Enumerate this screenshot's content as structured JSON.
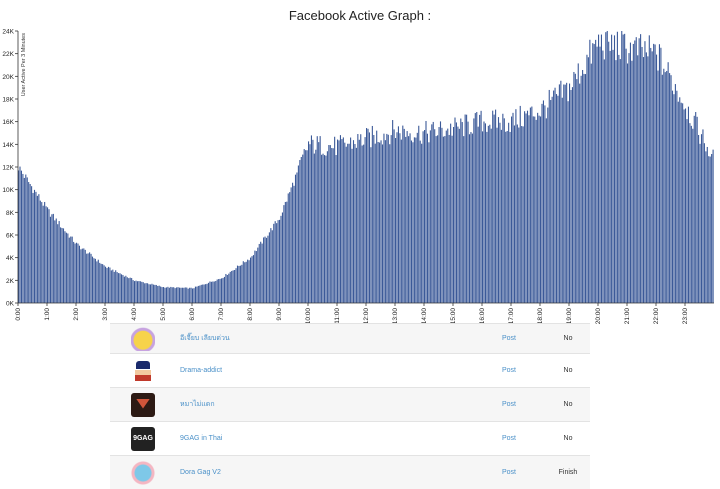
{
  "chart_data": {
    "type": "bar",
    "title": "Facebook Active Graph :",
    "ylabel": "User Active Per 3 Minutes",
    "xlabel": "",
    "ylim": [
      0,
      24000
    ],
    "yticks": [
      "0K",
      "2K",
      "4K",
      "6K",
      "8K",
      "10K",
      "12K",
      "14K",
      "16K",
      "18K",
      "20K",
      "22K",
      "24K"
    ],
    "xticks": [
      "0:00",
      "1:00",
      "2:00",
      "3:00",
      "4:00",
      "5:00",
      "6:00",
      "7:00",
      "8:00",
      "9:00",
      "10:00",
      "11:00",
      "12:00",
      "13:00",
      "14:00",
      "15:00",
      "16:00",
      "17:00",
      "18:00",
      "19:00",
      "20:00",
      "21:00",
      "22:00",
      "23:00"
    ],
    "bar_color": "#3b5998",
    "interval_minutes": 3,
    "hourly_profile": [
      12000,
      8200,
      5200,
      3200,
      2000,
      1400,
      1300,
      2200,
      4000,
      7500,
      14000,
      13800,
      14500,
      15200,
      15000,
      15400,
      16000,
      16000,
      17000,
      19000,
      23000,
      22500,
      22000,
      17500
    ],
    "end_value": 12500
  },
  "table": {
    "rows": [
      {
        "logo": "page-logo-1",
        "name": "อีเจี๊ยบ เลียบด่วน",
        "post": "Post",
        "status": "No"
      },
      {
        "logo": "page-logo-2",
        "name": "Drama-addict",
        "post": "Post",
        "status": "No"
      },
      {
        "logo": "page-logo-3",
        "name": "หมาไม่แดก",
        "post": "Post",
        "status": "No"
      },
      {
        "logo": "page-logo-4",
        "logo_text": "9GAG",
        "name": "9GAG in Thai",
        "post": "Post",
        "status": "No"
      },
      {
        "logo": "page-logo-5",
        "name": "Dora Gag V2",
        "post": "Post",
        "status": "Finish"
      }
    ]
  }
}
